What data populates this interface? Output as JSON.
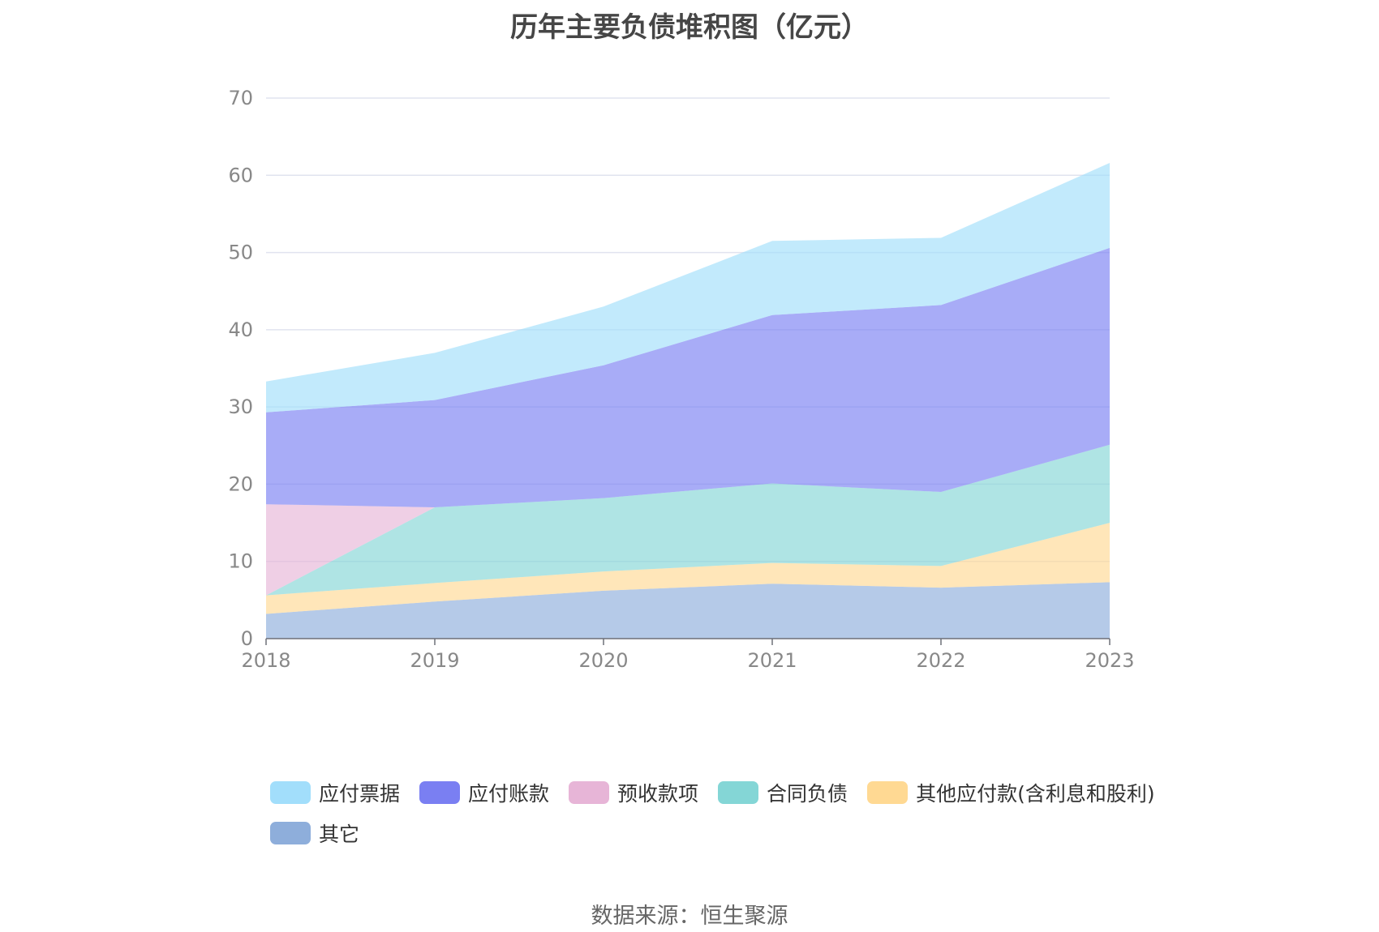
{
  "chart_data": {
    "type": "area",
    "stacked": true,
    "title": "历年主要负债堆积图（亿元）",
    "xlabel": "",
    "ylabel": "",
    "x": [
      "2018",
      "2019",
      "2020",
      "2021",
      "2022",
      "2023"
    ],
    "ylim": [
      0,
      70
    ],
    "yticks": [
      "0",
      "10",
      "20",
      "30",
      "40",
      "50",
      "60",
      "70"
    ],
    "grid": true,
    "legend_position": "bottom",
    "series": [
      {
        "name": "其它",
        "color": "#8eaedb",
        "values": [
          3.2,
          4.8,
          6.2,
          7.1,
          6.6,
          7.3
        ]
      },
      {
        "name": "其他应付款(含利息和股利)",
        "color": "#ffd993",
        "values": [
          2.4,
          2.4,
          2.5,
          2.7,
          2.8,
          7.7
        ]
      },
      {
        "name": "合同负债",
        "color": "#84d6d6",
        "values": [
          0,
          9.8,
          9.5,
          10.3,
          9.6,
          10.1
        ]
      },
      {
        "name": "预收款项",
        "color": "#e7b5d7",
        "values": [
          11.8,
          0,
          0,
          0,
          0,
          0
        ]
      },
      {
        "name": "应付账款",
        "color": "#7a7ff2",
        "values": [
          11.9,
          13.9,
          17.2,
          21.8,
          24.2,
          25.5
        ]
      },
      {
        "name": "应付票据",
        "color": "#a2defb",
        "values": [
          4.0,
          6.1,
          7.6,
          9.6,
          8.7,
          11.0
        ]
      }
    ]
  },
  "legend": {
    "items": [
      {
        "label": "应付票据",
        "color": "#a2defb"
      },
      {
        "label": "应付账款",
        "color": "#7a7ff2"
      },
      {
        "label": "预收款项",
        "color": "#e7b5d7"
      },
      {
        "label": "合同负债",
        "color": "#84d6d6"
      },
      {
        "label": "其他应付款(含利息和股利)",
        "color": "#ffd993"
      },
      {
        "label": "其它",
        "color": "#8eaedb"
      }
    ]
  },
  "source": "数据来源：恒生聚源"
}
